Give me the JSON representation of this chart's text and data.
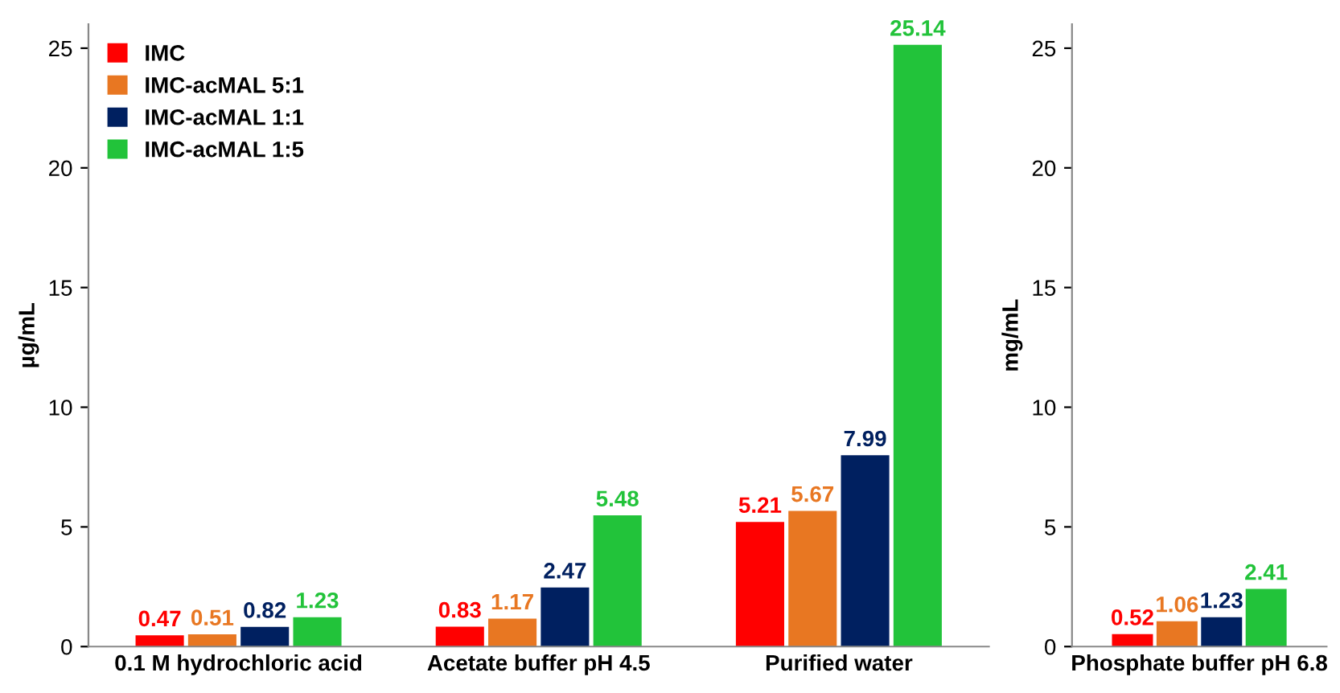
{
  "chart_data": [
    {
      "type": "bar",
      "ylabel": "µg/mL",
      "categories": [
        "0.1 M hydrochloric acid",
        "Acetate buffer pH 4.5",
        "Purified water"
      ],
      "ylim": [
        0,
        26
      ],
      "yticks": [
        0,
        5,
        10,
        15,
        20,
        25
      ],
      "grid": false,
      "legend": "top left",
      "data_labels": true,
      "series": [
        {
          "name": "IMC",
          "color": "#ff0000",
          "values": [
            0.47,
            0.83,
            5.21
          ]
        },
        {
          "name": "IMC-acMAL 5:1",
          "color": "#e87722",
          "values": [
            0.51,
            1.17,
            5.67
          ]
        },
        {
          "name": "IMC-acMAL 1:1",
          "color": "#002060",
          "values": [
            0.82,
            2.47,
            7.99
          ]
        },
        {
          "name": "IMC-acMAL 1:5",
          "color": "#22c33a",
          "values": [
            1.23,
            5.48,
            25.14
          ]
        }
      ]
    },
    {
      "type": "bar",
      "ylabel": "mg/mL",
      "categories": [
        "Phosphate buffer pH 6.8"
      ],
      "ylim": [
        0,
        26
      ],
      "yticks": [
        0,
        5,
        10,
        15,
        20,
        25
      ],
      "grid": false,
      "legend": false,
      "data_labels": true,
      "series": [
        {
          "color": "#ff0000",
          "values": [
            0.52
          ]
        },
        {
          "color": "#e87722",
          "values": [
            1.06
          ]
        },
        {
          "color": "#002060",
          "values": [
            1.23
          ]
        },
        {
          "color": "#22c33a",
          "values": [
            2.41
          ]
        }
      ]
    }
  ]
}
